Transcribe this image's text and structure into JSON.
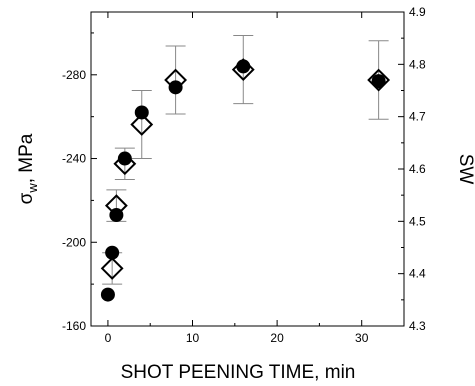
{
  "chart_data": {
    "type": "scatter",
    "title": "",
    "xlabel": "SHOT PEENING TIME, min",
    "ylabel": "σw, MPa",
    "ylabel_main": "σ",
    "ylabel_sub": "w",
    "ylabel_tail": ", MPa",
    "y2label": "SW",
    "xlim": [
      -2,
      35
    ],
    "ylim": [
      -160,
      -310
    ],
    "y2lim": [
      4.3,
      4.9
    ],
    "xticks": [
      0,
      10,
      20,
      30
    ],
    "xtick_labels": [
      "0",
      "10",
      "20",
      "30"
    ],
    "yticks": [
      -160,
      -200,
      -240,
      -280
    ],
    "ytick_labels": [
      "-160",
      "-200",
      "-240",
      "-280"
    ],
    "y2ticks": [
      4.3,
      4.4,
      4.5,
      4.6,
      4.7,
      4.8,
      4.9
    ],
    "y2tick_labels": [
      "4.3",
      "4.4",
      "4.5",
      "4.6",
      "4.7",
      "4.8",
      "4.9"
    ],
    "grid": false,
    "legend": "none",
    "series": [
      {
        "marker": "filled-circle",
        "axis": "left",
        "color": "#000000",
        "points": [
          {
            "x": 0,
            "y": -175
          },
          {
            "x": 0.5,
            "y": -195
          },
          {
            "x": 1,
            "y": -213
          },
          {
            "x": 2,
            "y": -240
          },
          {
            "x": 4,
            "y": -262
          },
          {
            "x": 8,
            "y": -274
          },
          {
            "x": 16,
            "y": -284
          },
          {
            "x": 32,
            "y": -277
          }
        ]
      },
      {
        "marker": "open-diamond",
        "axis": "right",
        "color": "#000000",
        "points": [
          {
            "x": 0.5,
            "y": 4.41,
            "err": 0.03
          },
          {
            "x": 1,
            "y": 4.53,
            "err": 0.03
          },
          {
            "x": 2,
            "y": 4.61,
            "err": 0.03
          },
          {
            "x": 4,
            "y": 4.685,
            "err": 0.065
          },
          {
            "x": 8,
            "y": 4.77,
            "err": 0.065
          },
          {
            "x": 16,
            "y": 4.79,
            "err": 0.065
          },
          {
            "x": 32,
            "y": 4.77,
            "err": 0.075
          }
        ]
      }
    ]
  }
}
